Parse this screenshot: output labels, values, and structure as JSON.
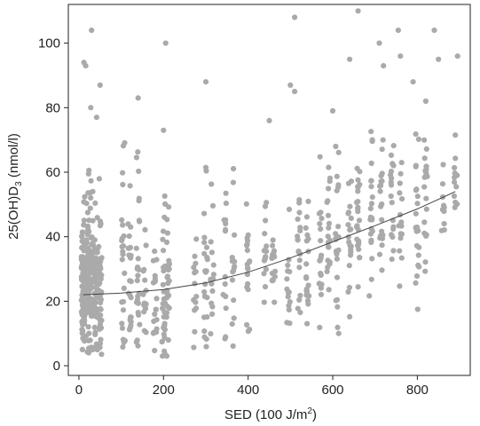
{
  "chart_data": {
    "type": "scatter",
    "xlabel": {
      "main": "SED (100 J/m",
      "sup": "2",
      "tail": ")"
    },
    "ylabel": {
      "main": "25(OH)D",
      "sub": "3",
      "tail": " (nmol/l)"
    },
    "xlim": [
      -25,
      925
    ],
    "ylim": [
      -3,
      112
    ],
    "x_ticks": [
      0,
      200,
      400,
      600,
      800
    ],
    "y_ticks": [
      0,
      20,
      40,
      60,
      80,
      100
    ],
    "grid": false,
    "legend": "none",
    "colors": {
      "points": "#aaaaaa",
      "trend": "#444444",
      "axis": "#222222"
    },
    "trend": {
      "x": [
        10,
        100,
        200,
        300,
        400,
        500,
        600,
        700,
        800,
        890
      ],
      "y": [
        22,
        22.5,
        23.6,
        25.7,
        29,
        33.4,
        38.4,
        43.4,
        48.6,
        54
      ]
    },
    "outliers": [
      [
        12,
        94
      ],
      [
        16,
        93
      ],
      [
        30,
        104
      ],
      [
        50,
        87
      ],
      [
        28,
        80
      ],
      [
        42,
        77
      ],
      [
        140,
        83
      ],
      [
        205,
        100
      ],
      [
        200,
        73
      ],
      [
        300,
        88
      ],
      [
        510,
        108
      ],
      [
        500,
        87
      ],
      [
        510,
        85
      ],
      [
        450,
        76
      ],
      [
        660,
        110
      ],
      [
        720,
        93
      ],
      [
        755,
        104
      ],
      [
        790,
        88
      ],
      [
        840,
        104
      ],
      [
        850,
        95
      ],
      [
        895,
        96
      ],
      [
        710,
        100
      ],
      [
        600,
        79
      ],
      [
        640,
        95
      ],
      [
        820,
        82
      ],
      [
        760,
        96
      ]
    ],
    "clusters": [
      {
        "x": 10,
        "n": 80,
        "lo": 5,
        "hi": 55,
        "mid": 24
      },
      {
        "x": 20,
        "n": 70,
        "lo": 4,
        "hi": 62,
        "mid": 25
      },
      {
        "x": 30,
        "n": 50,
        "lo": 5,
        "hi": 60,
        "mid": 25
      },
      {
        "x": 40,
        "n": 45,
        "lo": 5,
        "hi": 60,
        "mid": 24
      },
      {
        "x": 50,
        "n": 40,
        "lo": 2,
        "hi": 58,
        "mid": 24
      },
      {
        "x": 105,
        "n": 25,
        "lo": 5,
        "hi": 70,
        "mid": 25
      },
      {
        "x": 120,
        "n": 22,
        "lo": 5,
        "hi": 60,
        "mid": 24
      },
      {
        "x": 140,
        "n": 25,
        "lo": 5,
        "hi": 70,
        "mid": 25
      },
      {
        "x": 155,
        "n": 15,
        "lo": 5,
        "hi": 45,
        "mid": 22
      },
      {
        "x": 180,
        "n": 18,
        "lo": 3,
        "hi": 50,
        "mid": 22
      },
      {
        "x": 200,
        "n": 30,
        "lo": 3,
        "hi": 60,
        "mid": 22
      },
      {
        "x": 210,
        "n": 25,
        "lo": 3,
        "hi": 55,
        "mid": 20
      },
      {
        "x": 275,
        "n": 14,
        "lo": 5,
        "hi": 55,
        "mid": 25
      },
      {
        "x": 300,
        "n": 22,
        "lo": 5,
        "hi": 62,
        "mid": 28
      },
      {
        "x": 315,
        "n": 15,
        "lo": 5,
        "hi": 60,
        "mid": 28
      },
      {
        "x": 345,
        "n": 15,
        "lo": 5,
        "hi": 55,
        "mid": 28
      },
      {
        "x": 365,
        "n": 15,
        "lo": 5,
        "hi": 62,
        "mid": 30
      },
      {
        "x": 400,
        "n": 20,
        "lo": 10,
        "hi": 55,
        "mid": 28
      },
      {
        "x": 440,
        "n": 15,
        "lo": 15,
        "hi": 58,
        "mid": 32
      },
      {
        "x": 460,
        "n": 15,
        "lo": 15,
        "hi": 52,
        "mid": 33
      },
      {
        "x": 495,
        "n": 15,
        "lo": 10,
        "hi": 55,
        "mid": 33
      },
      {
        "x": 520,
        "n": 18,
        "lo": 6,
        "hi": 55,
        "mid": 35
      },
      {
        "x": 540,
        "n": 20,
        "lo": 10,
        "hi": 60,
        "mid": 35
      },
      {
        "x": 570,
        "n": 20,
        "lo": 8,
        "hi": 65,
        "mid": 38
      },
      {
        "x": 590,
        "n": 20,
        "lo": 8,
        "hi": 70,
        "mid": 40
      },
      {
        "x": 610,
        "n": 22,
        "lo": 10,
        "hi": 78,
        "mid": 40
      },
      {
        "x": 640,
        "n": 20,
        "lo": 15,
        "hi": 75,
        "mid": 45
      },
      {
        "x": 660,
        "n": 25,
        "lo": 15,
        "hi": 70,
        "mid": 45
      },
      {
        "x": 690,
        "n": 22,
        "lo": 20,
        "hi": 75,
        "mid": 48
      },
      {
        "x": 715,
        "n": 22,
        "lo": 20,
        "hi": 70,
        "mid": 48
      },
      {
        "x": 740,
        "n": 18,
        "lo": 25,
        "hi": 75,
        "mid": 50
      },
      {
        "x": 760,
        "n": 15,
        "lo": 20,
        "hi": 70,
        "mid": 50
      },
      {
        "x": 800,
        "n": 22,
        "lo": 10,
        "hi": 75,
        "mid": 52
      },
      {
        "x": 820,
        "n": 20,
        "lo": 20,
        "hi": 70,
        "mid": 52
      },
      {
        "x": 860,
        "n": 10,
        "lo": 20,
        "hi": 65,
        "mid": 52
      },
      {
        "x": 890,
        "n": 12,
        "lo": 35,
        "hi": 75,
        "mid": 55
      }
    ]
  }
}
